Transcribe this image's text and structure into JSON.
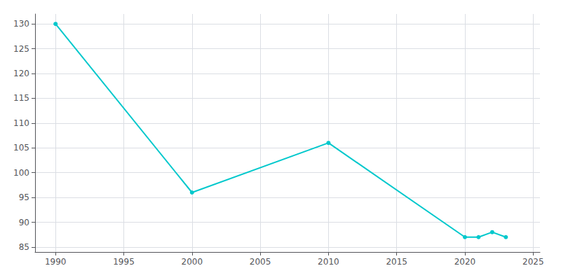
{
  "chart_data": {
    "type": "line",
    "x": [
      1990,
      2000,
      2010,
      2020,
      2021,
      2022,
      2023
    ],
    "values": [
      130,
      96,
      106,
      87,
      87,
      88,
      87
    ],
    "color": "#00C8CC",
    "marker": "circle",
    "xlim": [
      1988.5,
      2025.5
    ],
    "ylim": [
      84,
      132
    ],
    "xticks": [
      1990,
      1995,
      2000,
      2005,
      2010,
      2015,
      2020,
      2025
    ],
    "yticks": [
      85,
      90,
      95,
      100,
      105,
      110,
      115,
      120,
      125,
      130
    ],
    "grid": true
  }
}
